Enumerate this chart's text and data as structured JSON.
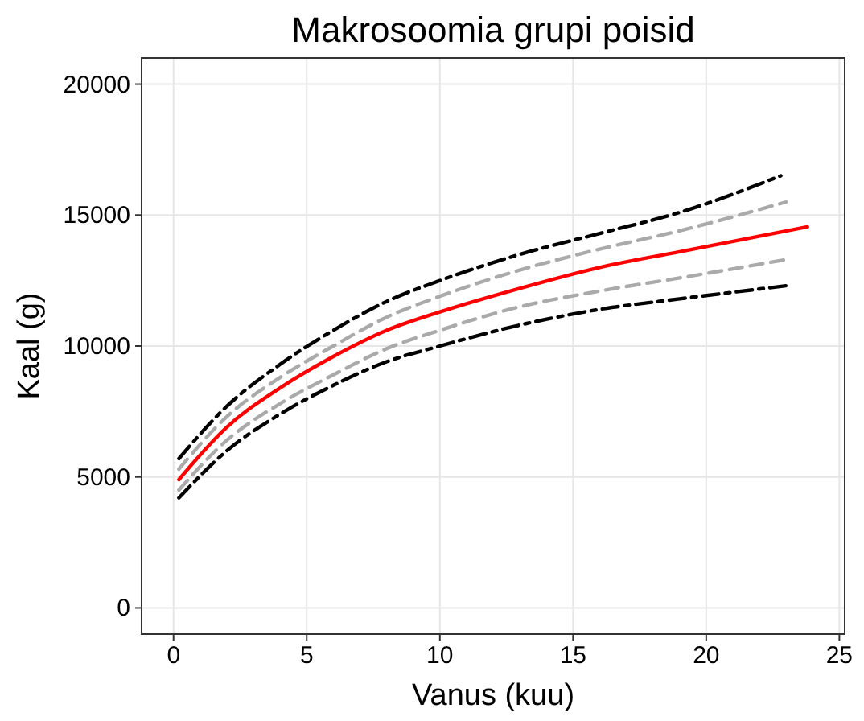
{
  "chart_data": {
    "type": "line",
    "title": "Makrosoomia grupi poisid",
    "xlabel": "Vanus (kuu)",
    "ylabel": "Kaal (g)",
    "xlim": [
      -1.2,
      25.2
    ],
    "ylim": [
      -1000,
      21000
    ],
    "xticks": [
      0,
      5,
      10,
      15,
      20,
      25
    ],
    "yticks": [
      0,
      5000,
      10000,
      15000,
      20000
    ],
    "grid": true,
    "series": [
      {
        "color": "#000000",
        "line_style": "dashed",
        "x": [
          0.2,
          2,
          4,
          6,
          8,
          10,
          13,
          16,
          19,
          22.8
        ],
        "values": [
          5700,
          7700,
          9300,
          10600,
          11700,
          12500,
          13500,
          14300,
          15100,
          16500
        ]
      },
      {
        "color": "#aaaaaa",
        "line_style": "dashed",
        "x": [
          0.2,
          2,
          4,
          6,
          8,
          10,
          13,
          16,
          19,
          23
        ],
        "values": [
          5300,
          7300,
          8800,
          10000,
          11100,
          11900,
          12900,
          13700,
          14400,
          15500
        ]
      },
      {
        "color": "#ff0000",
        "line_style": "solid",
        "x": [
          0.2,
          2,
          4,
          6,
          8,
          10,
          13,
          16,
          19,
          23.8
        ],
        "values": [
          4900,
          6900,
          8400,
          9600,
          10600,
          11300,
          12200,
          13000,
          13600,
          14550
        ]
      },
      {
        "color": "#aaaaaa",
        "line_style": "dashed",
        "x": [
          0.2,
          2,
          4,
          6,
          8,
          10,
          13,
          16,
          19,
          23
        ],
        "values": [
          4500,
          6400,
          7800,
          8900,
          9900,
          10600,
          11500,
          12100,
          12600,
          13300
        ]
      },
      {
        "color": "#000000",
        "line_style": "dashed",
        "x": [
          0.2,
          2,
          4,
          6,
          8,
          10,
          13,
          16,
          19,
          23
        ],
        "values": [
          4200,
          6000,
          7400,
          8500,
          9400,
          10000,
          10800,
          11400,
          11800,
          12300
        ]
      }
    ]
  }
}
